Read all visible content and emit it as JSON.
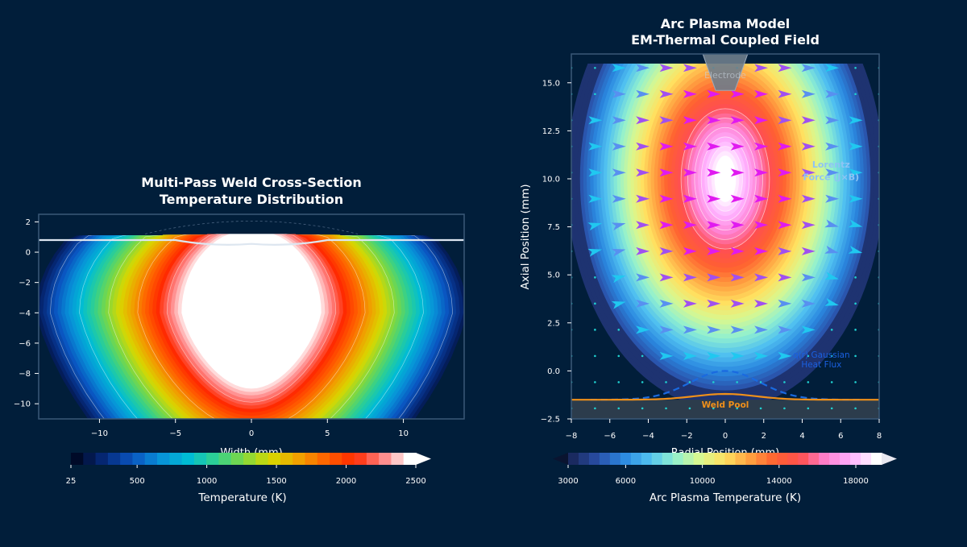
{
  "colors": {
    "background": "#011e3a",
    "frame": "#3a5878",
    "text": "#ffffff"
  },
  "chart_data": [
    {
      "type": "heatmap",
      "subtype": "filled-contour",
      "title": "Multi-Pass Weld Cross-Section\nTemperature Distribution",
      "title_lines": [
        "Multi-Pass Weld Cross-Section",
        "Temperature Distribution"
      ],
      "xlabel": "Width (mm)",
      "ylabel": "",
      "xlim": [
        -14,
        14
      ],
      "ylim": [
        -11,
        2.5
      ],
      "xticks": [
        "−10",
        "−5",
        "0",
        "5",
        "10"
      ],
      "xtick_values": [
        -10,
        -5,
        0,
        5,
        10
      ],
      "yticks": [
        "2",
        "0",
        "−2",
        "−4",
        "−6",
        "−8",
        "−10"
      ],
      "ytick_values": [
        2,
        0,
        -2,
        -4,
        -6,
        -8,
        -10
      ],
      "peak_center": [
        0,
        -4
      ],
      "plate_surface_y": 0.8,
      "colorbar": {
        "label": "Temperature (K)",
        "range": [
          25,
          2500
        ],
        "extend": "max",
        "ticks": [
          "25",
          "500",
          "1000",
          "1500",
          "2000",
          "2500"
        ],
        "tick_values": [
          25,
          500,
          1000,
          1500,
          2000,
          2500
        ],
        "colormap": [
          "#000a28",
          "#062a7a",
          "#0a55c0",
          "#0890d8",
          "#00bcd4",
          "#30d090",
          "#80d840",
          "#d8d800",
          "#f0a000",
          "#ff6000",
          "#ff2a00",
          "#ff8080",
          "#ffffff"
        ]
      }
    },
    {
      "type": "heatmap",
      "subtype": "filled-contour-with-quiver",
      "title": "Arc Plasma Model\nEM-Thermal Coupled Field",
      "title_lines": [
        "Arc Plasma Model",
        "EM-Thermal Coupled Field"
      ],
      "xlabel": "Radial Position (mm)",
      "ylabel": "Axial Position (mm)",
      "xlim": [
        -8,
        8
      ],
      "ylim": [
        -2.5,
        16.5
      ],
      "xticks": [
        "−8",
        "−6",
        "−4",
        "−2",
        "0",
        "2",
        "4",
        "6",
        "8"
      ],
      "xtick_values": [
        -8,
        -6,
        -4,
        -2,
        0,
        2,
        4,
        6,
        8
      ],
      "yticks": [
        "15.0",
        "12.5",
        "10.0",
        "7.5",
        "5.0",
        "2.5",
        "0.0",
        "−2.5"
      ],
      "ytick_values": [
        15,
        12.5,
        10,
        7.5,
        5,
        2.5,
        0,
        -2.5
      ],
      "peak_center": [
        0,
        10
      ],
      "annotations": {
        "electrode": "Electrode",
        "lorentz": [
          "Lorentz",
          "Force (J×B)"
        ],
        "heat_flux": [
          "q(r) Gaussian",
          "Heat Flux"
        ],
        "weld_pool": "Weld Pool"
      },
      "series": [
        {
          "name": "q(r) Gaussian Heat Flux",
          "style": "dashed",
          "color": "#1a6ae0",
          "peak": 0,
          "base": -1.5
        },
        {
          "name": "Weld Pool",
          "style": "solid",
          "color": "#f0901a",
          "peak": -1.2,
          "base": -1.5
        }
      ],
      "colorbar": {
        "label": "Arc Plasma Temperature (K)",
        "range": [
          3000,
          20000
        ],
        "extend": "both",
        "ticks": [
          "3000",
          "6000",
          "10000",
          "14000",
          "18000"
        ],
        "tick_values": [
          3000,
          6000,
          10000,
          14000,
          18000
        ],
        "colormap": [
          "#1a2a60",
          "#2a50a8",
          "#2a88e0",
          "#50c0f0",
          "#90f0d0",
          "#d8f890",
          "#ffe060",
          "#ffa040",
          "#ff6030",
          "#ff5050",
          "#ff80d0",
          "#ffb0ff",
          "#ffffff"
        ]
      }
    }
  ]
}
